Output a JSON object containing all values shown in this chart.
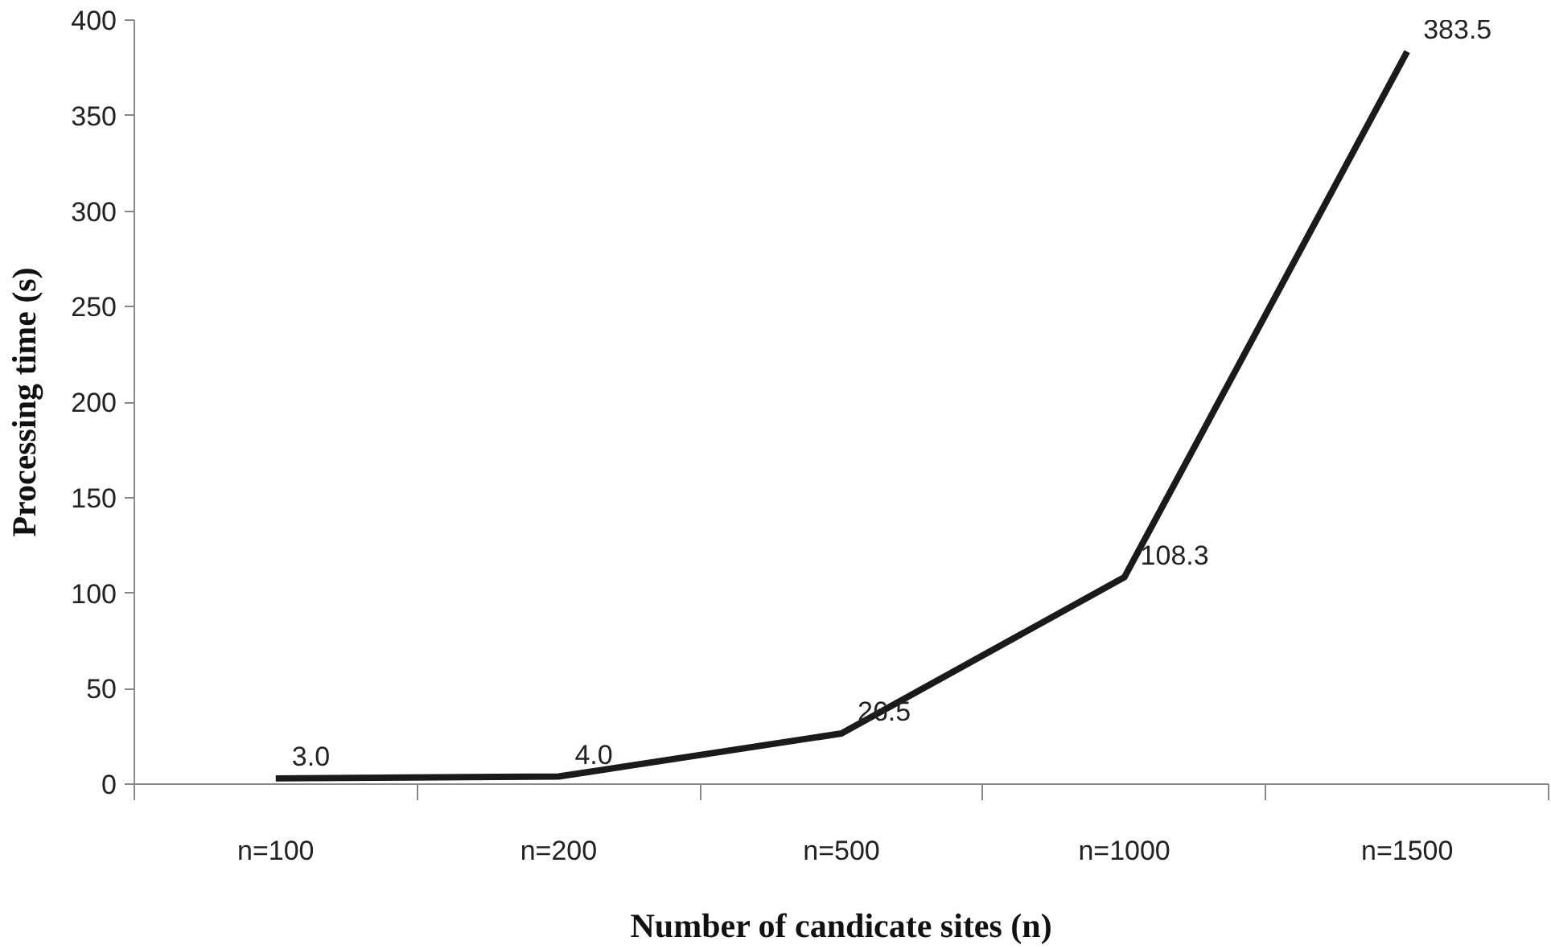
{
  "chart_data": {
    "type": "line",
    "xlabel": "Number of candicate sites (n)",
    "ylabel": "Processing time (s)",
    "categories": [
      "n=100",
      "n=200",
      "n=500",
      "n=1000",
      "n=1500"
    ],
    "values": [
      3.0,
      4.0,
      26.5,
      108.3,
      383.5
    ],
    "value_labels": [
      "3.0",
      "4.0",
      "26.5",
      "108.3",
      "383.5"
    ],
    "color": "#1a1a1a",
    "ylim": [
      0,
      400
    ],
    "yticks": [
      0,
      50,
      100,
      150,
      200,
      250,
      300,
      350,
      400
    ],
    "grid": false,
    "marker": "none",
    "line_style": "solid"
  }
}
